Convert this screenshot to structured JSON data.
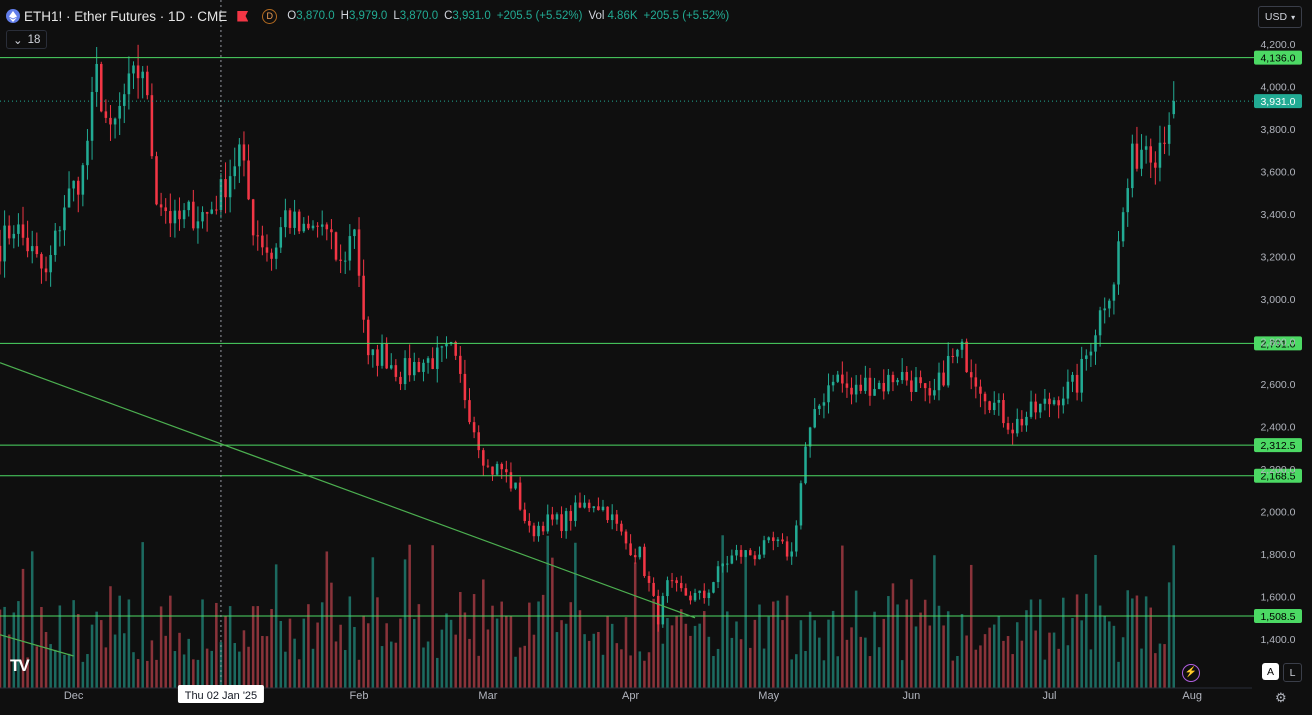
{
  "header": {
    "symbol_title": "ETH1! · Ether Futures · 1D · CME",
    "dividend_badge": "D",
    "open_label": "O",
    "open": "3,870.0",
    "high_label": "H",
    "high": "3,979.0",
    "low_label": "L",
    "low": "3,870.0",
    "close_label": "C",
    "close": "3,931.0",
    "change": "+205.5 (+5.52%)",
    "vol_label": "Vol",
    "vol": "4.86K",
    "vol_change": "+205.5 (+5.52%)",
    "indicator_count": "18",
    "currency": "USD"
  },
  "footer": {
    "logo": "TV",
    "auto_button": "A",
    "log_button": "L",
    "crosshair_date": "Thu 02 Jan '25"
  },
  "colors": {
    "background": "#0f0f0f",
    "up": "#22ab94",
    "down": "#f23645",
    "up_volume": "#1e7a6f",
    "down_volume": "#a03a42",
    "level_line": "#4cd964",
    "trend_line": "#4caf50",
    "last_price": "#22ab94"
  },
  "chart_data": {
    "type": "candlestick",
    "title": "ETH1! · Ether Futures · 1D · CME",
    "y_axis": {
      "ticks": [
        1400,
        1600,
        1800,
        2000,
        2200,
        2400,
        2600,
        2800,
        3000,
        3200,
        3400,
        3600,
        3800,
        4000,
        4200
      ],
      "tick_labels": [
        "1,400.0",
        "1,600.0",
        "1,800.0",
        "2,000.0",
        "2,200.0",
        "2,400.0",
        "2,600.0",
        "2,800.0",
        "3,000.0",
        "3,200.0",
        "3,400.0",
        "3,600.0",
        "3,800.0",
        "4,000.0",
        "4,200.0"
      ],
      "range": [
        1380,
        4230
      ]
    },
    "x_axis": {
      "ticks": [
        {
          "date": "2024-12-01",
          "label": "Dec"
        },
        {
          "date": "2025-02-01",
          "label": "Feb"
        },
        {
          "date": "2025-03-01",
          "label": "Mar"
        },
        {
          "date": "2025-04-01",
          "label": "Apr"
        },
        {
          "date": "2025-05-01",
          "label": "May"
        },
        {
          "date": "2025-06-01",
          "label": "Jun"
        },
        {
          "date": "2025-07-01",
          "label": "Jul"
        },
        {
          "date": "2025-08-01",
          "label": "Aug"
        }
      ],
      "range": [
        "2024-11-15",
        "2025-08-14"
      ]
    },
    "horizontal_levels": [
      {
        "value": 4136.0,
        "label": "4,136.0"
      },
      {
        "value": 2791.0,
        "label": "2,791.0"
      },
      {
        "value": 2312.5,
        "label": "2,312.5"
      },
      {
        "value": 2168.5,
        "label": "2,168.5"
      },
      {
        "value": 1508.5,
        "label": "1,508.5"
      }
    ],
    "last_price": {
      "value": 3931.0,
      "label": "3,931.0"
    },
    "trend_lines": [
      {
        "from": {
          "date": "2024-11-15",
          "value": 2700
        },
        "to": {
          "date": "2025-04-15",
          "value": 1500
        }
      },
      {
        "from": {
          "date": "2024-11-15",
          "value": 1420
        },
        "to": {
          "date": "2024-12-01",
          "value": 1320
        }
      }
    ],
    "crosshair": {
      "date": "2025-01-02"
    },
    "volume_scale_max": 1,
    "waypoints": [
      [
        "2024-11-15",
        3250
      ],
      [
        "2024-11-18",
        3350
      ],
      [
        "2024-11-21",
        3250
      ],
      [
        "2024-11-25",
        3100
      ],
      [
        "2024-11-29",
        3450
      ],
      [
        "2024-12-03",
        3600
      ],
      [
        "2024-12-06",
        4050
      ],
      [
        "2024-12-09",
        3750
      ],
      [
        "2024-12-12",
        3950
      ],
      [
        "2024-12-16",
        4100
      ],
      [
        "2024-12-19",
        3500
      ],
      [
        "2024-12-23",
        3350
      ],
      [
        "2024-12-26",
        3400
      ],
      [
        "2024-12-30",
        3400
      ],
      [
        "2025-01-02",
        3500
      ],
      [
        "2025-01-06",
        3700
      ],
      [
        "2025-01-09",
        3350
      ],
      [
        "2025-01-13",
        3200
      ],
      [
        "2025-01-16",
        3400
      ],
      [
        "2025-01-20",
        3300
      ],
      [
        "2025-01-24",
        3350
      ],
      [
        "2025-01-28",
        3150
      ],
      [
        "2025-01-31",
        3350
      ],
      [
        "2025-02-03",
        2700
      ],
      [
        "2025-02-06",
        2750
      ],
      [
        "2025-02-10",
        2650
      ],
      [
        "2025-02-14",
        2700
      ],
      [
        "2025-02-18",
        2720
      ],
      [
        "2025-02-21",
        2750
      ],
      [
        "2025-02-24",
        2550
      ],
      [
        "2025-02-26",
        2400
      ],
      [
        "2025-03-01",
        2200
      ],
      [
        "2025-03-04",
        2200
      ],
      [
        "2025-03-07",
        2100
      ],
      [
        "2025-03-10",
        1900
      ],
      [
        "2025-03-13",
        1950
      ],
      [
        "2025-03-17",
        1950
      ],
      [
        "2025-03-20",
        2000
      ],
      [
        "2025-03-24",
        2050
      ],
      [
        "2025-03-27",
        2000
      ],
      [
        "2025-03-31",
        1850
      ],
      [
        "2025-04-03",
        1800
      ],
      [
        "2025-04-07",
        1500
      ],
      [
        "2025-04-09",
        1650
      ],
      [
        "2025-04-14",
        1600
      ],
      [
        "2025-04-17",
        1600
      ],
      [
        "2025-04-21",
        1750
      ],
      [
        "2025-04-24",
        1800
      ],
      [
        "2025-04-28",
        1800
      ],
      [
        "2025-05-02",
        1850
      ],
      [
        "2025-05-06",
        1800
      ],
      [
        "2025-05-09",
        2300
      ],
      [
        "2025-05-12",
        2500
      ],
      [
        "2025-05-15",
        2650
      ],
      [
        "2025-05-19",
        2550
      ],
      [
        "2025-05-22",
        2600
      ],
      [
        "2025-05-26",
        2600
      ],
      [
        "2025-05-29",
        2650
      ],
      [
        "2025-06-02",
        2600
      ],
      [
        "2025-06-05",
        2500
      ],
      [
        "2025-06-09",
        2700
      ],
      [
        "2025-06-12",
        2750
      ],
      [
        "2025-06-16",
        2600
      ],
      [
        "2025-06-19",
        2500
      ],
      [
        "2025-06-23",
        2400
      ],
      [
        "2025-06-26",
        2450
      ],
      [
        "2025-06-30",
        2500
      ],
      [
        "2025-07-03",
        2550
      ],
      [
        "2025-07-07",
        2600
      ],
      [
        "2025-07-10",
        2800
      ],
      [
        "2025-07-13",
        3000
      ],
      [
        "2025-07-15",
        3100
      ],
      [
        "2025-07-17",
        3400
      ],
      [
        "2025-07-19",
        3650
      ],
      [
        "2025-07-22",
        3750
      ],
      [
        "2025-07-24",
        3700
      ],
      [
        "2025-07-26",
        3800
      ],
      [
        "2025-07-28",
        3931
      ]
    ]
  }
}
